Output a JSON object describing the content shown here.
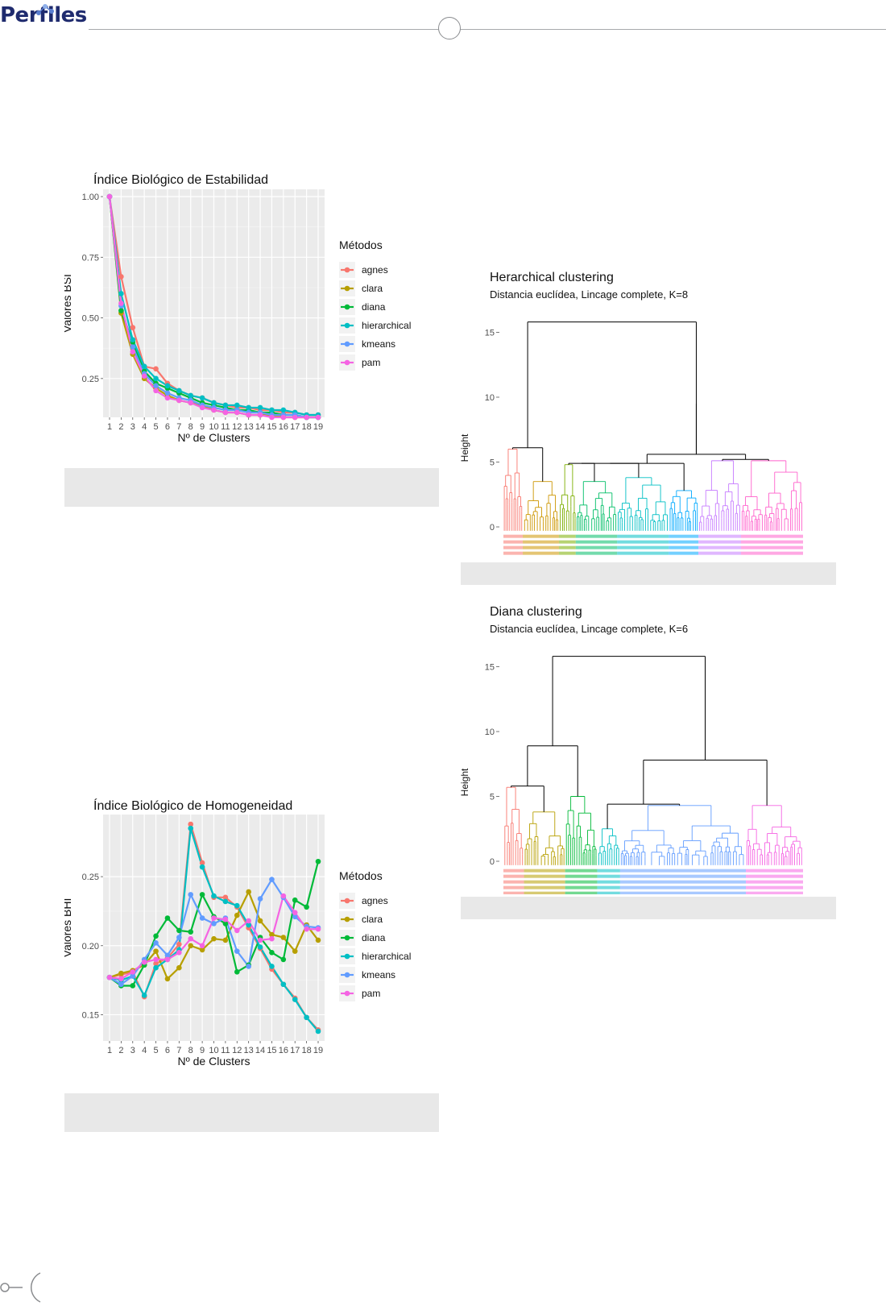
{
  "header": {
    "logo_text": "Perfiles"
  },
  "chart_data": [
    {
      "id": "bsi",
      "type": "line",
      "title": "Índice Biológico de Estabilidad",
      "xlabel": "Nº de Clusters",
      "ylabel": "Valores BSI",
      "x": [
        1,
        2,
        3,
        4,
        5,
        6,
        7,
        8,
        9,
        10,
        11,
        12,
        13,
        14,
        15,
        16,
        17,
        18,
        19
      ],
      "ylim": [
        0.09,
        1.03
      ],
      "yticks": [
        0.25,
        0.5,
        0.75,
        1.0
      ],
      "ytick_labels": [
        "0.25",
        "0.50",
        "0.75",
        "1.00"
      ],
      "grid": true,
      "legend": {
        "title": "Métodos",
        "position": "right"
      },
      "series": [
        {
          "name": "agnes",
          "color": "#F8766D",
          "values": [
            1.0,
            0.67,
            0.46,
            0.3,
            0.29,
            0.23,
            0.2,
            0.18,
            0.17,
            0.15,
            0.14,
            0.13,
            0.13,
            0.12,
            0.12,
            0.11,
            0.11,
            0.1,
            0.1
          ]
        },
        {
          "name": "clara",
          "color": "#B79F00",
          "values": [
            1.0,
            0.52,
            0.35,
            0.25,
            0.21,
            0.18,
            0.16,
            0.15,
            0.14,
            0.12,
            0.11,
            0.11,
            0.1,
            0.1,
            0.1,
            0.09,
            0.09,
            0.09,
            0.09
          ]
        },
        {
          "name": "diana",
          "color": "#00BA38",
          "values": [
            1.0,
            0.53,
            0.4,
            0.28,
            0.23,
            0.21,
            0.19,
            0.17,
            0.15,
            0.14,
            0.13,
            0.12,
            0.12,
            0.11,
            0.11,
            0.1,
            0.1,
            0.09,
            0.09
          ]
        },
        {
          "name": "hierarchical",
          "color": "#00BFC4",
          "values": [
            1.0,
            0.6,
            0.41,
            0.3,
            0.25,
            0.22,
            0.2,
            0.18,
            0.17,
            0.15,
            0.14,
            0.14,
            0.13,
            0.13,
            0.12,
            0.12,
            0.11,
            0.1,
            0.1
          ]
        },
        {
          "name": "kmeans",
          "color": "#619CFF",
          "values": [
            1.0,
            0.55,
            0.38,
            0.27,
            0.22,
            0.19,
            0.17,
            0.16,
            0.14,
            0.13,
            0.12,
            0.12,
            0.11,
            0.11,
            0.1,
            0.1,
            0.1,
            0.09,
            0.09
          ]
        },
        {
          "name": "pam",
          "color": "#F564E3",
          "values": [
            1.0,
            0.56,
            0.36,
            0.26,
            0.2,
            0.17,
            0.16,
            0.15,
            0.13,
            0.12,
            0.11,
            0.11,
            0.1,
            0.1,
            0.09,
            0.09,
            0.09,
            0.09,
            0.09
          ]
        }
      ]
    },
    {
      "id": "bhi",
      "type": "line",
      "title": "Índice Biológico de Homogeneidad",
      "xlabel": "Nº de Clusters",
      "ylabel": "Valores BHI",
      "x": [
        1,
        2,
        3,
        4,
        5,
        6,
        7,
        8,
        9,
        10,
        11,
        12,
        13,
        14,
        15,
        16,
        17,
        18,
        19
      ],
      "ylim": [
        0.131,
        0.295
      ],
      "yticks": [
        0.15,
        0.2,
        0.25
      ],
      "ytick_labels": [
        "0.15",
        "0.20",
        "0.25"
      ],
      "grid": true,
      "legend": {
        "title": "Métodos",
        "position": "right"
      },
      "series": [
        {
          "name": "agnes",
          "color": "#F8766D",
          "values": [
            0.177,
            0.179,
            0.181,
            0.163,
            0.187,
            0.191,
            0.201,
            0.288,
            0.26,
            0.235,
            0.235,
            0.228,
            0.213,
            0.198,
            0.183,
            0.172,
            0.162,
            0.148,
            0.139
          ]
        },
        {
          "name": "clara",
          "color": "#B79F00",
          "values": [
            0.177,
            0.18,
            0.182,
            0.186,
            0.196,
            0.176,
            0.184,
            0.2,
            0.197,
            0.205,
            0.204,
            0.222,
            0.239,
            0.218,
            0.208,
            0.206,
            0.196,
            0.215,
            0.204
          ]
        },
        {
          "name": "diana",
          "color": "#00BA38",
          "values": [
            0.177,
            0.171,
            0.171,
            0.186,
            0.207,
            0.22,
            0.211,
            0.21,
            0.237,
            0.221,
            0.216,
            0.181,
            0.186,
            0.206,
            0.195,
            0.19,
            0.233,
            0.228,
            0.261
          ]
        },
        {
          "name": "hierarchical",
          "color": "#00BFC4",
          "values": [
            0.177,
            0.175,
            0.178,
            0.164,
            0.184,
            0.19,
            0.197,
            0.285,
            0.257,
            0.236,
            0.232,
            0.229,
            0.215,
            0.199,
            0.185,
            0.172,
            0.161,
            0.148,
            0.138
          ]
        },
        {
          "name": "kmeans",
          "color": "#619CFF",
          "values": [
            0.177,
            0.172,
            0.178,
            0.19,
            0.202,
            0.193,
            0.206,
            0.237,
            0.22,
            0.216,
            0.22,
            0.196,
            0.185,
            0.234,
            0.248,
            0.235,
            0.221,
            0.214,
            0.213
          ]
        },
        {
          "name": "pam",
          "color": "#F564E3",
          "values": [
            0.177,
            0.176,
            0.181,
            0.188,
            0.19,
            0.19,
            0.195,
            0.205,
            0.2,
            0.22,
            0.219,
            0.211,
            0.218,
            0.204,
            0.205,
            0.236,
            0.224,
            0.212,
            0.212
          ]
        }
      ]
    },
    {
      "id": "hc",
      "type": "dendrogram",
      "title": "Herarchical clustering",
      "subtitle": "Distancia euclídea, Lincage complete, K=8",
      "ylabel": "Height",
      "ylim": [
        0,
        15.9
      ],
      "yticks": [
        0,
        5,
        10,
        15
      ],
      "ytick_labels": [
        "0",
        "5",
        "10",
        "15"
      ],
      "grid": false,
      "clusters": [
        {
          "color": "#F8766D",
          "height": 6.0
        },
        {
          "color": "#CD9600",
          "height": 3.5
        },
        {
          "color": "#7CAE00",
          "height": 4.8
        },
        {
          "color": "#00BE67",
          "height": 3.5
        },
        {
          "color": "#00BFC4",
          "height": 3.8
        },
        {
          "color": "#00A9FF",
          "height": 2.8
        },
        {
          "color": "#C77CFF",
          "height": 5.1
        },
        {
          "color": "#FF61CC",
          "height": 5.1
        }
      ],
      "merges": [
        15.8,
        9.5,
        5.6
      ]
    },
    {
      "id": "diana",
      "type": "dendrogram",
      "title": "Diana clustering",
      "subtitle": "Distancia euclídea, Lincage complete, K=6",
      "ylabel": "Height",
      "ylim": [
        0,
        15.9
      ],
      "yticks": [
        0,
        5,
        10,
        15
      ],
      "ytick_labels": [
        "0",
        "5",
        "10",
        "15"
      ],
      "grid": false,
      "clusters": [
        {
          "color": "#F8766D",
          "height": 5.7
        },
        {
          "color": "#B79F00",
          "height": 3.8
        },
        {
          "color": "#00BA38",
          "height": 5.0
        },
        {
          "color": "#00BFC4",
          "height": 2.5
        },
        {
          "color": "#619CFF",
          "height": 4.3
        },
        {
          "color": "#F564E3",
          "height": 4.3
        }
      ],
      "merges": [
        15.8,
        8.9,
        7.8
      ]
    }
  ]
}
